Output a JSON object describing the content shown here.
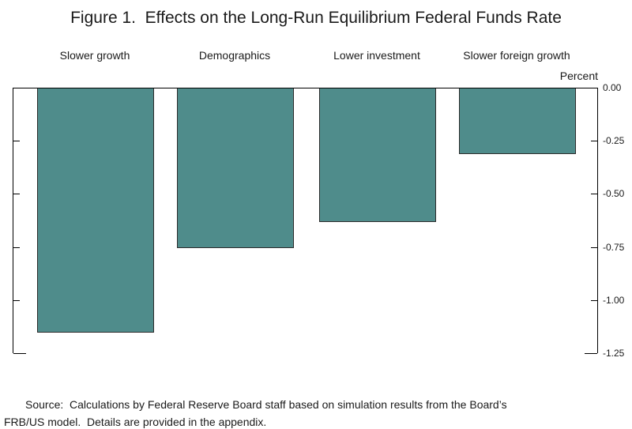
{
  "chart_data": {
    "type": "bar",
    "title": "Figure 1.  Effects on the Long-Run Equilibrium Federal Funds Rate",
    "categories": [
      "Slower growth",
      "Demographics",
      "Lower investment",
      "Slower foreign growth"
    ],
    "values": [
      -1.15,
      -0.75,
      -0.63,
      -0.31
    ],
    "xlabel": "",
    "ylabel": "Percent",
    "ylim": [
      -1.25,
      0
    ],
    "yticks": [
      0,
      -0.25,
      -0.5,
      -0.75,
      -1.0,
      -1.25
    ],
    "ytick_labels": [
      "0.00",
      "-0.25",
      "-0.50",
      "-0.75",
      "-1.00",
      "-1.25"
    ],
    "bar_color": "#4f8c8b",
    "bar_border_color": "#2b2b2b",
    "grid": false,
    "legend_position": "none",
    "axis_side": "right"
  },
  "source_note": {
    "text": "Source:  Calculations by Federal Reserve Board staff based on simulation results from the Board’s FRB/US model.  Details are provided in the appendix.",
    "lines": [
      "Source:  Calculations by Federal Reserve Board staff based on simulation results from the Board’s",
      "FRB/US model.  Details are provided in the appendix."
    ]
  }
}
